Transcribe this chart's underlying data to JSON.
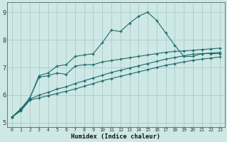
{
  "xlabel": "Humidex (Indice chaleur)",
  "background_color": "#cde8e5",
  "grid_color": "#aacccc",
  "line_color": "#1e6b6b",
  "xlim": [
    -0.5,
    23.5
  ],
  "ylim": [
    4.85,
    9.35
  ],
  "xticks": [
    0,
    1,
    2,
    3,
    4,
    5,
    6,
    7,
    8,
    9,
    10,
    11,
    12,
    13,
    14,
    15,
    16,
    17,
    18,
    19,
    20,
    21,
    22,
    23
  ],
  "yticks": [
    5,
    6,
    7,
    8,
    9
  ],
  "series": {
    "s1": [
      5.2,
      5.5,
      5.9,
      6.7,
      6.8,
      7.05,
      7.1,
      7.4,
      7.45,
      7.5,
      7.9,
      8.35,
      8.3,
      8.6,
      8.85,
      9.0,
      8.7,
      8.25,
      7.8,
      7.4,
      7.4,
      7.5,
      7.5,
      7.5
    ],
    "s2": [
      5.2,
      5.5,
      5.9,
      6.65,
      6.7,
      6.8,
      6.75,
      7.05,
      7.1,
      7.1,
      7.2,
      7.25,
      7.3,
      7.35,
      7.4,
      7.45,
      7.5,
      7.55,
      7.58,
      7.6,
      7.62,
      7.65,
      7.67,
      7.7
    ],
    "s3": [
      5.2,
      5.45,
      5.85,
      6.0,
      6.1,
      6.22,
      6.3,
      6.42,
      6.52,
      6.62,
      6.72,
      6.82,
      6.9,
      6.98,
      7.06,
      7.14,
      7.22,
      7.3,
      7.36,
      7.42,
      7.48,
      7.5,
      7.52,
      7.55
    ],
    "s4": [
      5.2,
      5.43,
      5.82,
      5.9,
      5.98,
      6.06,
      6.14,
      6.22,
      6.32,
      6.42,
      6.52,
      6.6,
      6.68,
      6.76,
      6.84,
      6.92,
      7.0,
      7.08,
      7.14,
      7.2,
      7.26,
      7.3,
      7.34,
      7.38
    ]
  }
}
